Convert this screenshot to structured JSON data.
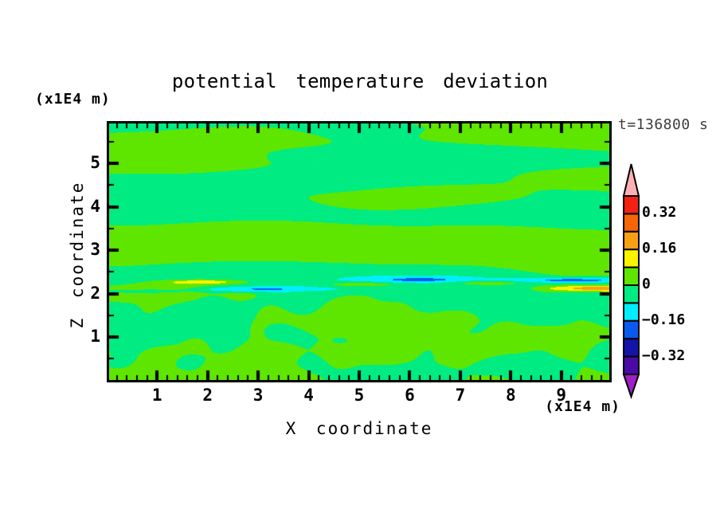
{
  "figure": {
    "title": "potential temperature deviation",
    "time_label": "t=136800 s",
    "x_axis_label": "X coordinate",
    "z_axis_label": "Z coordinate",
    "x_axis_unit": "(x1E4 m)",
    "z_axis_unit": "(x1E4 m)"
  },
  "chart_data": {
    "type": "filled_contour",
    "title": "potential temperature deviation",
    "xlabel": "X coordinate",
    "ylabel": "Z coordinate",
    "x_unit_label": "(x1E4 m)",
    "y_unit_label": "(x1E4 m)",
    "time_annotation": "t=136800 s",
    "x_range": [
      0.05,
      9.95
    ],
    "z_range": [
      0.01,
      5.92
    ],
    "x_major_ticks": [
      1,
      2,
      3,
      4,
      5,
      6,
      7,
      8,
      9
    ],
    "x_minor_step": 0.2,
    "z_major_ticks": [
      1,
      2,
      3,
      4,
      5
    ],
    "z_minor_step": 0.5,
    "contour_interval": 0.08,
    "levels": [
      -0.4,
      -0.32,
      -0.24,
      -0.16,
      -0.08,
      0,
      0.08,
      0.16,
      0.24,
      0.32,
      0.4
    ],
    "colorbar": {
      "orientation": "vertical",
      "over_color": "#ffb0b4",
      "under_color": "#a020c8",
      "segment_colors_top_to_bottom": [
        "#f52014",
        "#f86408",
        "#f8a014",
        "#fbf300",
        "#5fe600",
        "#00ec82",
        "#00eeff",
        "#0a5af0",
        "#1414a8",
        "#4a0aa5"
      ],
      "tick_labels": [
        {
          "boundary_index_from_top": 1,
          "text": "0.32"
        },
        {
          "boundary_index_from_top": 3,
          "text": "0.16"
        },
        {
          "boundary_index_from_top": 5,
          "text": "0"
        },
        {
          "boundary_index_from_top": 7,
          "text": "−0.16"
        },
        {
          "boundary_index_from_top": 9,
          "text": "−0.32"
        }
      ]
    },
    "field_description": "Deviation field mostly between -0.08 and +0.08 (chartreuse = 0..0.08, spring green = -0.08..0): wavy elongated horizontal layers above z≈2.3, turbulent convective eddies below z≈2, and a thin shear layer near z≈2.2 containing yellow (positive) and cyan (negative) streaks, strongest at the right edge where values reach ≈±0.3.",
    "field_model": {
      "waves": [
        [
          0.052,
          2.35,
          1.0,
          0.62,
          1.3,
          0.4,
          0.0
        ],
        [
          0.046,
          3.8,
          0.85,
          0.47,
          4.2,
          2.0,
          0.06
        ],
        [
          0.031,
          5.3,
          0.7,
          0.95,
          2.6,
          4.4,
          -0.09
        ],
        [
          0.018,
          9.0,
          0.5,
          1.4,
          0.9,
          1.2,
          0.12
        ]
      ],
      "turbulence": {
        "z_top": 2.35,
        "z_fade": 1.25,
        "terms": [
          [
            0.058,
            1.85,
            1.7,
            2.5,
            0.5,
            3.0,
            1.5,
            1.15,
            2.1
          ],
          [
            0.042,
            3.35,
            1.1,
            3.3,
            1.8,
            4.7,
            1.0,
            1.75,
            0.5
          ],
          [
            0.03,
            5.2,
            0.6,
            4.1,
            0.9,
            6.3,
            0.7,
            2.6,
            1.4
          ]
        ]
      },
      "streaks": [
        [
          0.15,
          2.27,
          0.055,
          1.95,
          0.85
        ],
        [
          -0.16,
          2.1,
          0.065,
          2.8,
          1.15
        ],
        [
          0.13,
          2.21,
          0.05,
          5.05,
          0.75
        ],
        [
          -0.12,
          2.32,
          0.06,
          6.2,
          0.95
        ],
        [
          0.26,
          2.12,
          0.07,
          9.7,
          0.95
        ],
        [
          -0.17,
          2.31,
          0.055,
          9.3,
          1.1
        ],
        [
          0.11,
          2.24,
          0.05,
          7.5,
          0.7
        ],
        [
          -0.1,
          2.05,
          0.05,
          0.8,
          0.8
        ]
      ]
    }
  }
}
